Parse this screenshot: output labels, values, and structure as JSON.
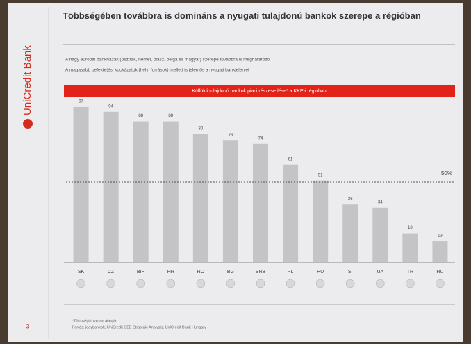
{
  "slide": {
    "logo": "UniCredit Bank",
    "page_number": "3"
  },
  "chart_data": {
    "type": "bar",
    "title": "Többségében továbbra is domináns a nyugati tulajdonú bankok szerepe a régióban",
    "bullets": [
      "A nagy európai bankházak (osztrák, német, olasz, belga és magyar) szerepe továbbra is meghatározó",
      "A magasabb befektetési kockázatok (helyi források) mellett is jelentős a nyugati bankjelenlét"
    ],
    "subtitle": "Külföldi tulajdonú bankok piaci részesedése* a KKE-i régióban",
    "categories": [
      "SK",
      "CZ",
      "BIH",
      "HR",
      "RO",
      "BG",
      "SRB",
      "PL",
      "HU",
      "SI",
      "UA",
      "TR",
      "RU"
    ],
    "values": [
      97,
      94,
      88,
      88,
      80,
      76,
      74,
      61,
      51,
      36,
      34,
      18,
      13
    ],
    "color": "#c4c4c6",
    "ylim": [
      0,
      100
    ],
    "reference_line": {
      "value": 50,
      "label": "50%"
    },
    "footnotes": [
      "*Többségi tulajdon alapján",
      "Forrás: jegybankok, UniCredit CEE Strategic Analysis, UniCredit Bank Hungary"
    ]
  }
}
